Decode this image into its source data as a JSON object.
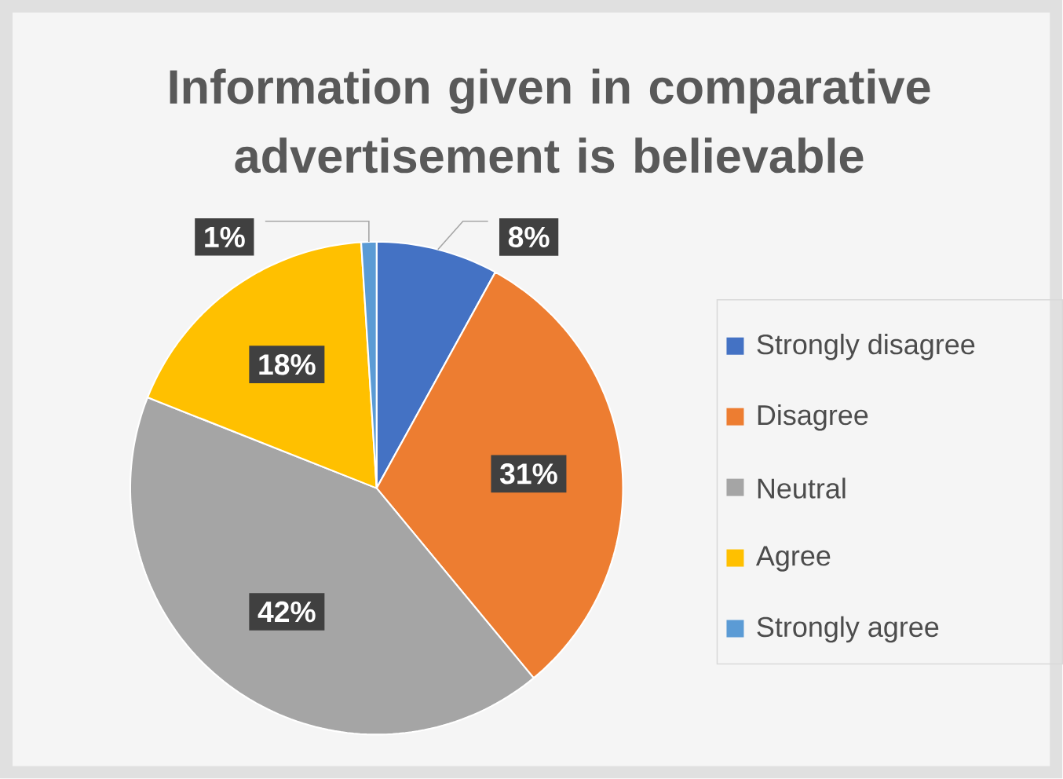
{
  "chart_data": {
    "type": "pie",
    "title": "Information given in comparative advertisement is believable",
    "categories": [
      "Strongly disagree",
      "Disagree",
      "Neutral",
      "Agree",
      "Strongly agree"
    ],
    "values": [
      8,
      31,
      42,
      18,
      1
    ],
    "colors": [
      "#4472c4",
      "#ed7d31",
      "#a5a5a5",
      "#ffc000",
      "#5b9bd5"
    ],
    "value_labels": [
      "8%",
      "31%",
      "42%",
      "18%",
      "1%"
    ],
    "legend": "right"
  }
}
